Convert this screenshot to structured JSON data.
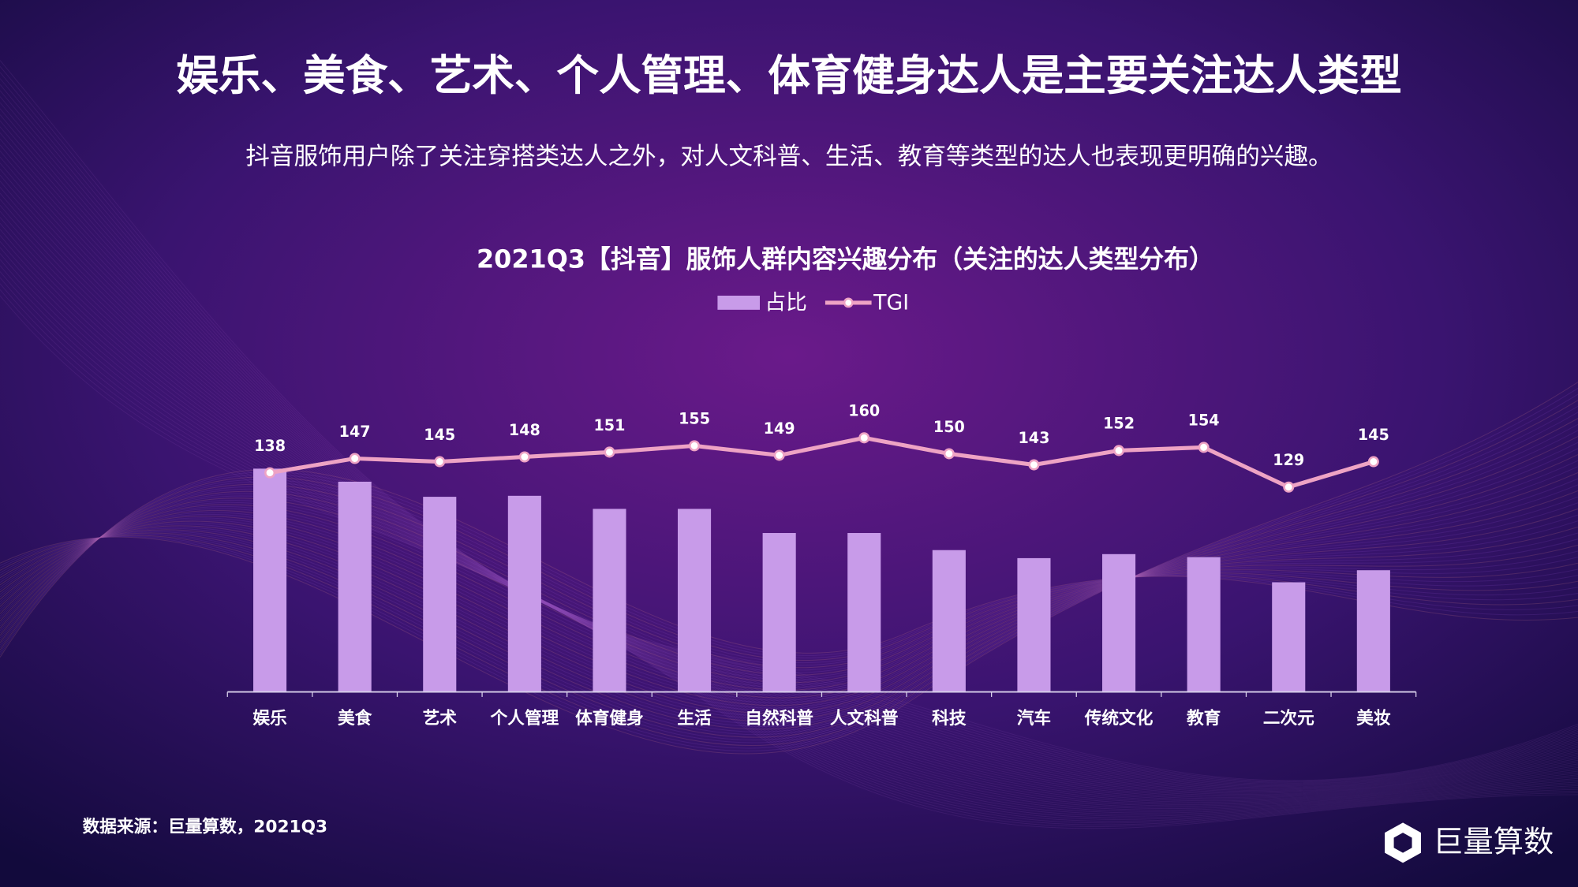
{
  "title": "娱乐、美食、艺术、个人管理、体育健身达人是主要关注达人类型",
  "subtitle": "抖音服饰用户除了关注穿搭类达人之外，对人文科普、生活、教育等类型的达人也表现更明确的兴趣。",
  "chart_data": {
    "type": "bar-line",
    "title": "2021Q3【抖音】服饰人群内容兴趣分布（关注的达人类型分布）",
    "categories": [
      "娱乐",
      "美食",
      "艺术",
      "个人管理",
      "体育健身",
      "生活",
      "自然科普",
      "人文科普",
      "科技",
      "汽车",
      "传统文化",
      "教育",
      "二次元",
      "美妆"
    ],
    "series": [
      {
        "name": "占比",
        "type": "bar",
        "color": "#c89be9",
        "values": [
          22.2,
          20.9,
          19.4,
          19.5,
          18.2,
          18.2,
          15.8,
          15.8,
          14.1,
          13.3,
          13.7,
          13.4,
          10.9,
          12.1
        ]
      },
      {
        "name": "TGI",
        "type": "line",
        "axis": "y2",
        "color": "#eea3c4",
        "values": [
          138,
          147,
          145,
          148,
          151,
          155,
          149,
          160,
          150,
          143,
          152,
          154,
          129,
          145
        ]
      }
    ],
    "ylim": [
      0,
      30
    ],
    "y2lim": [
      0,
      190
    ],
    "legend": "top"
  },
  "source": "数据来源：巨量算数，2021Q3",
  "logo": "巨量算数"
}
